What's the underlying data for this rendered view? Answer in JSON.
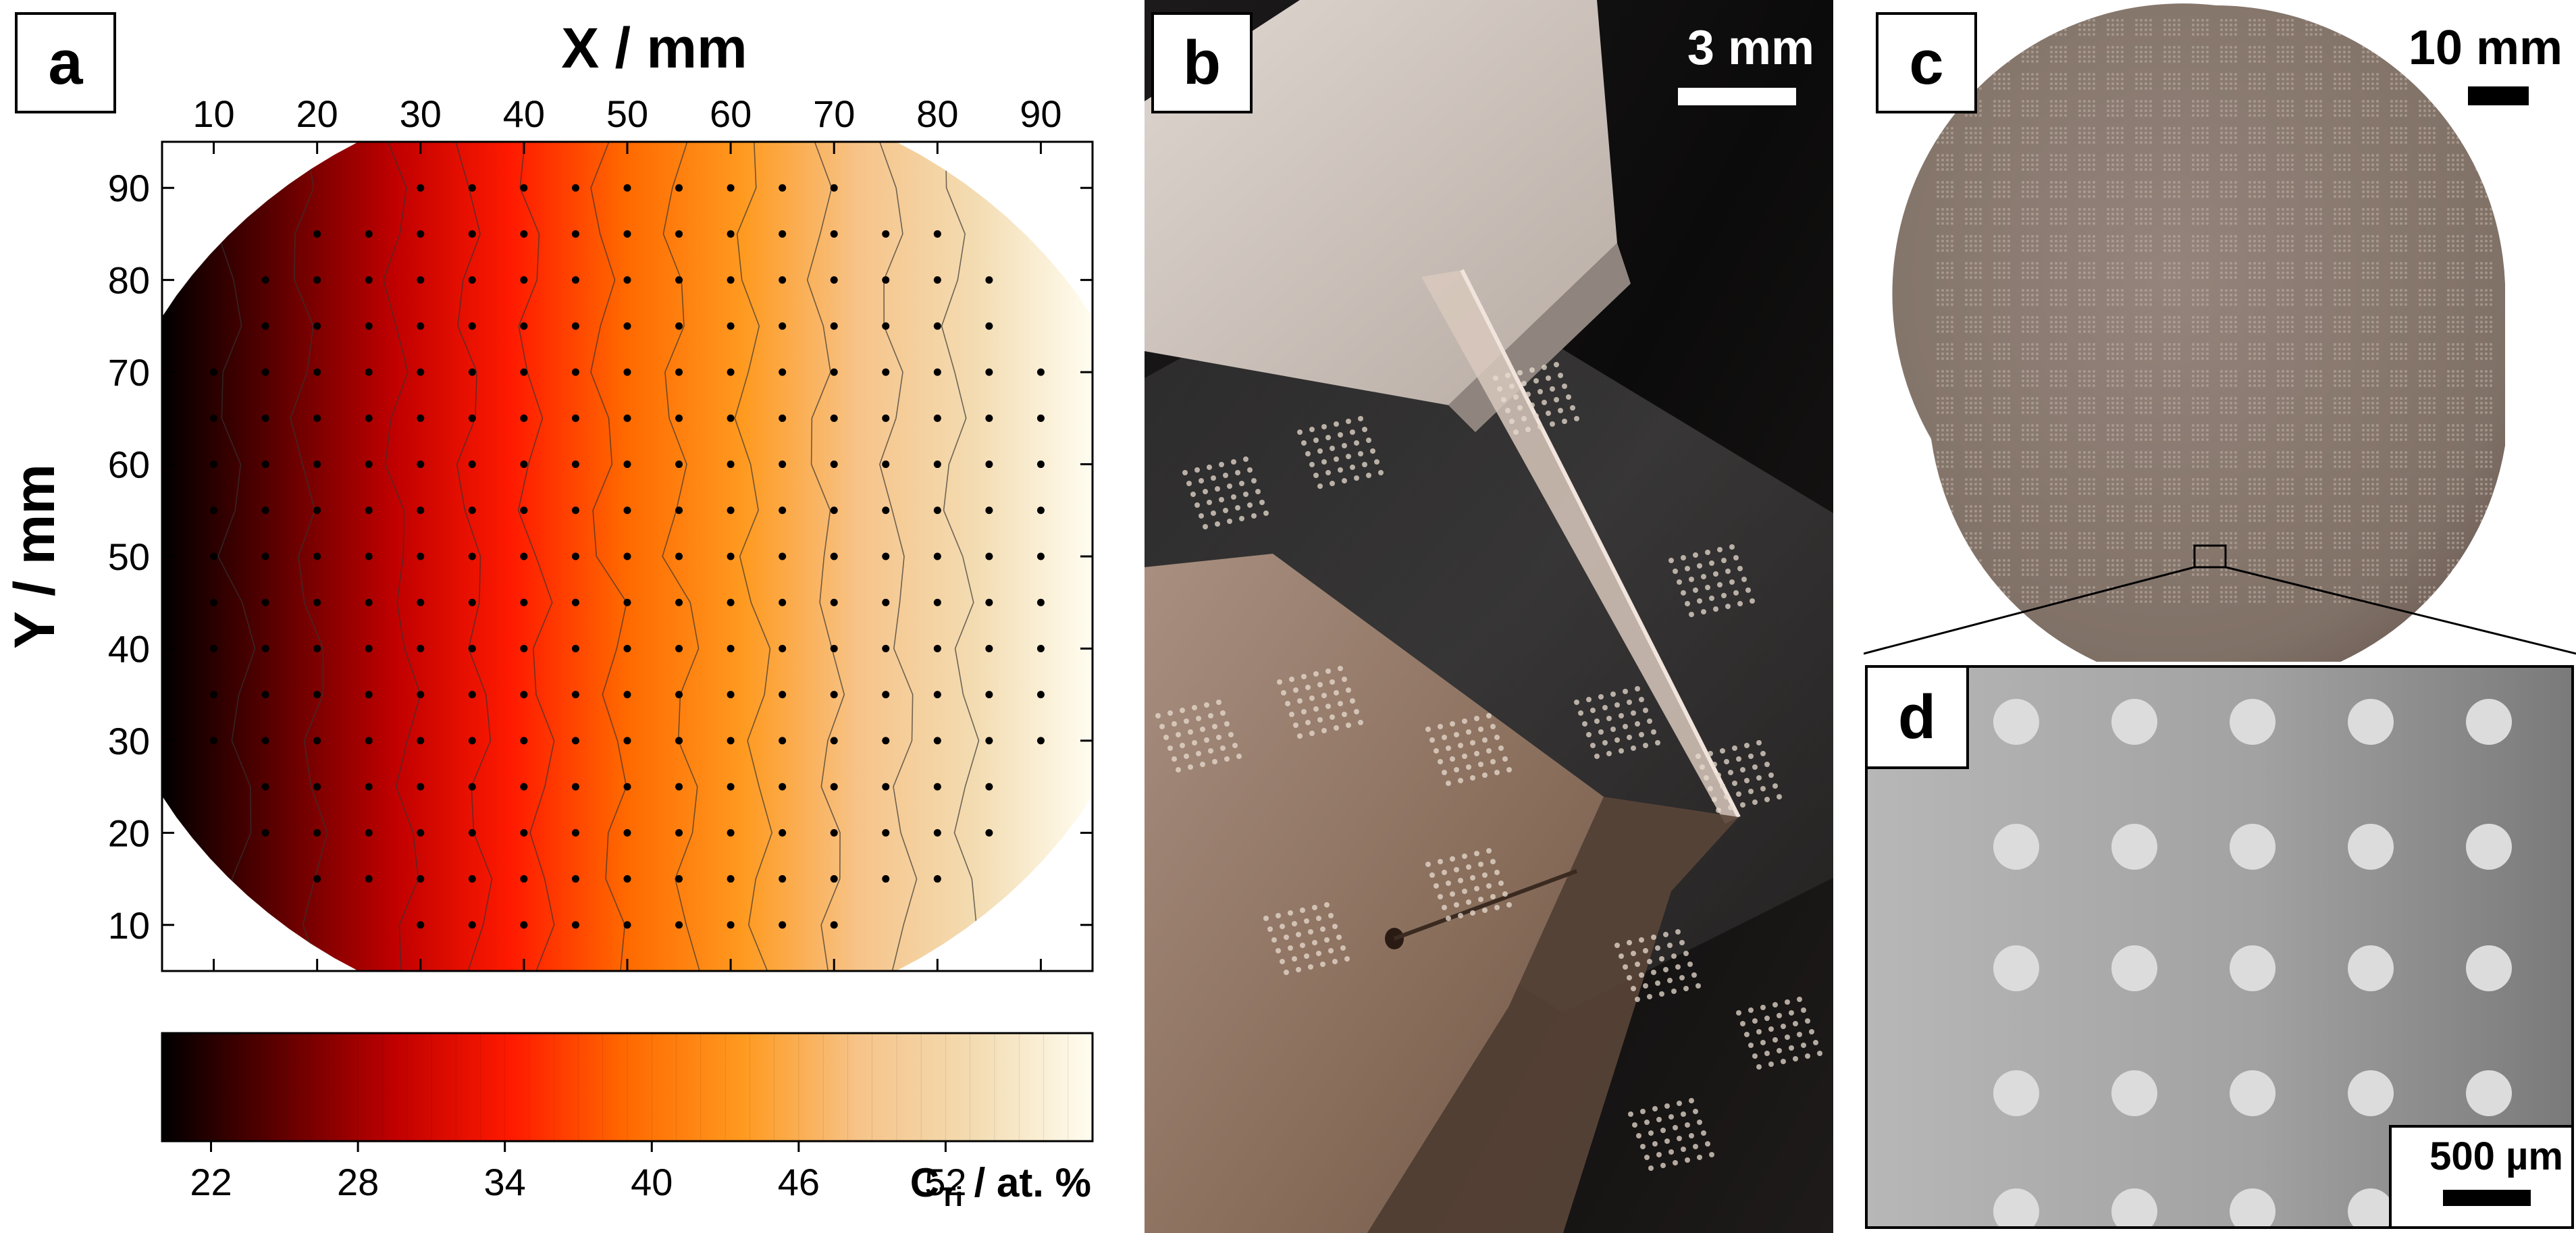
{
  "panels": {
    "a": {
      "label": "a",
      "chart_data": {
        "type": "heatmap",
        "title": "",
        "xlabel": "X / mm",
        "ylabel": "Y / mm",
        "xlim": [
          5,
          95
        ],
        "ylim": [
          5,
          95
        ],
        "x_ticks": [
          10,
          20,
          30,
          40,
          50,
          60,
          70,
          80,
          90
        ],
        "y_ticks": [
          10,
          20,
          30,
          40,
          50,
          60,
          70,
          80,
          90
        ],
        "x_tick_labels": [
          "10",
          "20",
          "30",
          "40",
          "50",
          "60",
          "70",
          "80",
          "90"
        ],
        "y_tick_labels": [
          "10",
          "20",
          "30",
          "40",
          "50",
          "60",
          "70",
          "80",
          "90"
        ],
        "x_axis_position": "top",
        "grid": false,
        "measurement_grid_spacing_mm": 5,
        "wafer_diameter_mm": 100,
        "colorbar": {
          "label_main": "C",
          "label_sub": "Ti",
          "label_unit": " / at. %",
          "range": [
            20,
            58
          ],
          "ticks": [
            22,
            28,
            34,
            40,
            46,
            52
          ],
          "tick_labels": [
            "22",
            "28",
            "34",
            "40",
            "46",
            "52"
          ],
          "colors": [
            "#000000",
            "#5e0000",
            "#c00000",
            "#ff1a00",
            "#ff6a00",
            "#ff9a20",
            "#f6c48a",
            "#f3dcb2",
            "#fffdf0"
          ]
        },
        "concentration_model": {
          "description_values": [
            {
              "x": 5,
              "c": 20
            },
            {
              "x": 50,
              "c": 40
            },
            {
              "x": 95,
              "c": 58
            }
          ]
        }
      }
    },
    "b": {
      "label": "b",
      "scalebar": "3 mm"
    },
    "c": {
      "label": "c",
      "scalebar": "10 mm"
    },
    "d": {
      "label": "d",
      "scalebar": "500 µm"
    }
  },
  "colors": {
    "photo_dark": "#141212",
    "wafer_fill": "#8c7a6e",
    "sem_background": "#a9a9a9",
    "sem_dot": "#d9d9d9"
  }
}
